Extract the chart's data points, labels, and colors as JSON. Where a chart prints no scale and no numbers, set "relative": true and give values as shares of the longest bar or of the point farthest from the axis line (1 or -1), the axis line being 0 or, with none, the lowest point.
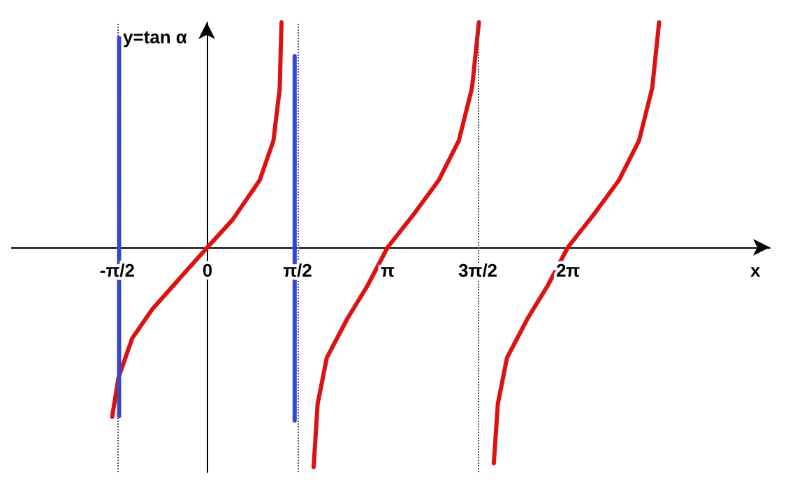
{
  "chart_data": {
    "type": "line",
    "relative": true,
    "xlabel": "x",
    "annotations": [
      "y=tan α"
    ],
    "xlim": [
      -3.42,
      9.8
    ],
    "xticks": [
      {
        "value": -1.5708,
        "label": "-π/2"
      },
      0,
      {
        "value": 1.5708,
        "label": "π/2"
      },
      {
        "value": 3.1416,
        "label": "π"
      },
      {
        "value": 4.7124,
        "label": "3π/2"
      },
      {
        "value": 6.2832,
        "label": "2π"
      }
    ],
    "tick_labels": "x",
    "marker": "none",
    "line_style": "solid",
    "series": [
      {
        "color": "#dd1111",
        "x": [
          -1.66,
          -1.55,
          -1.31,
          -0.96,
          -0.49,
          0,
          0.44,
          0.91,
          1.15,
          1.26,
          1.29
        ],
        "values": [
          -0.754,
          -0.579,
          -0.404,
          -0.275,
          -0.14,
          0,
          0.123,
          0.298,
          0.474,
          0.708,
          1
        ]
      },
      {
        "color": "#dd1111",
        "x": [
          1.85,
          1.92,
          2.08,
          2.44,
          2.79,
          3.14,
          3.61,
          4.03,
          4.38,
          4.61,
          4.73
        ],
        "values": [
          -0.977,
          -0.696,
          -0.491,
          -0.316,
          -0.17,
          0,
          0.152,
          0.298,
          0.474,
          0.708,
          1
        ]
      },
      {
        "color": "#dd1111",
        "x": [
          4.99,
          5.06,
          5.22,
          5.58,
          5.93,
          6.28,
          6.75,
          7.17,
          7.52,
          7.75,
          7.87
        ],
        "values": [
          -0.96,
          -0.696,
          -0.491,
          -0.316,
          -0.17,
          0,
          0.152,
          0.298,
          0.474,
          0.708,
          1
        ]
      },
      {
        "color": "#3344dd",
        "x": [
          -1.54,
          -1.54
        ],
        "values": [
          0.93,
          -0.75
        ]
      },
      {
        "color": "#3344dd",
        "x": [
          1.52,
          1.52
        ],
        "values": [
          0.85,
          -0.77
        ]
      }
    ],
    "ref_lines": [
      {
        "axis": "x",
        "value": -1.5708,
        "color": "#555555",
        "line_style": "dotted"
      },
      {
        "axis": "x",
        "value": 1.5708,
        "color": "#555555",
        "line_style": "dotted"
      },
      {
        "axis": "x",
        "value": 4.7124,
        "color": "#555555",
        "line_style": "dotted"
      }
    ]
  }
}
